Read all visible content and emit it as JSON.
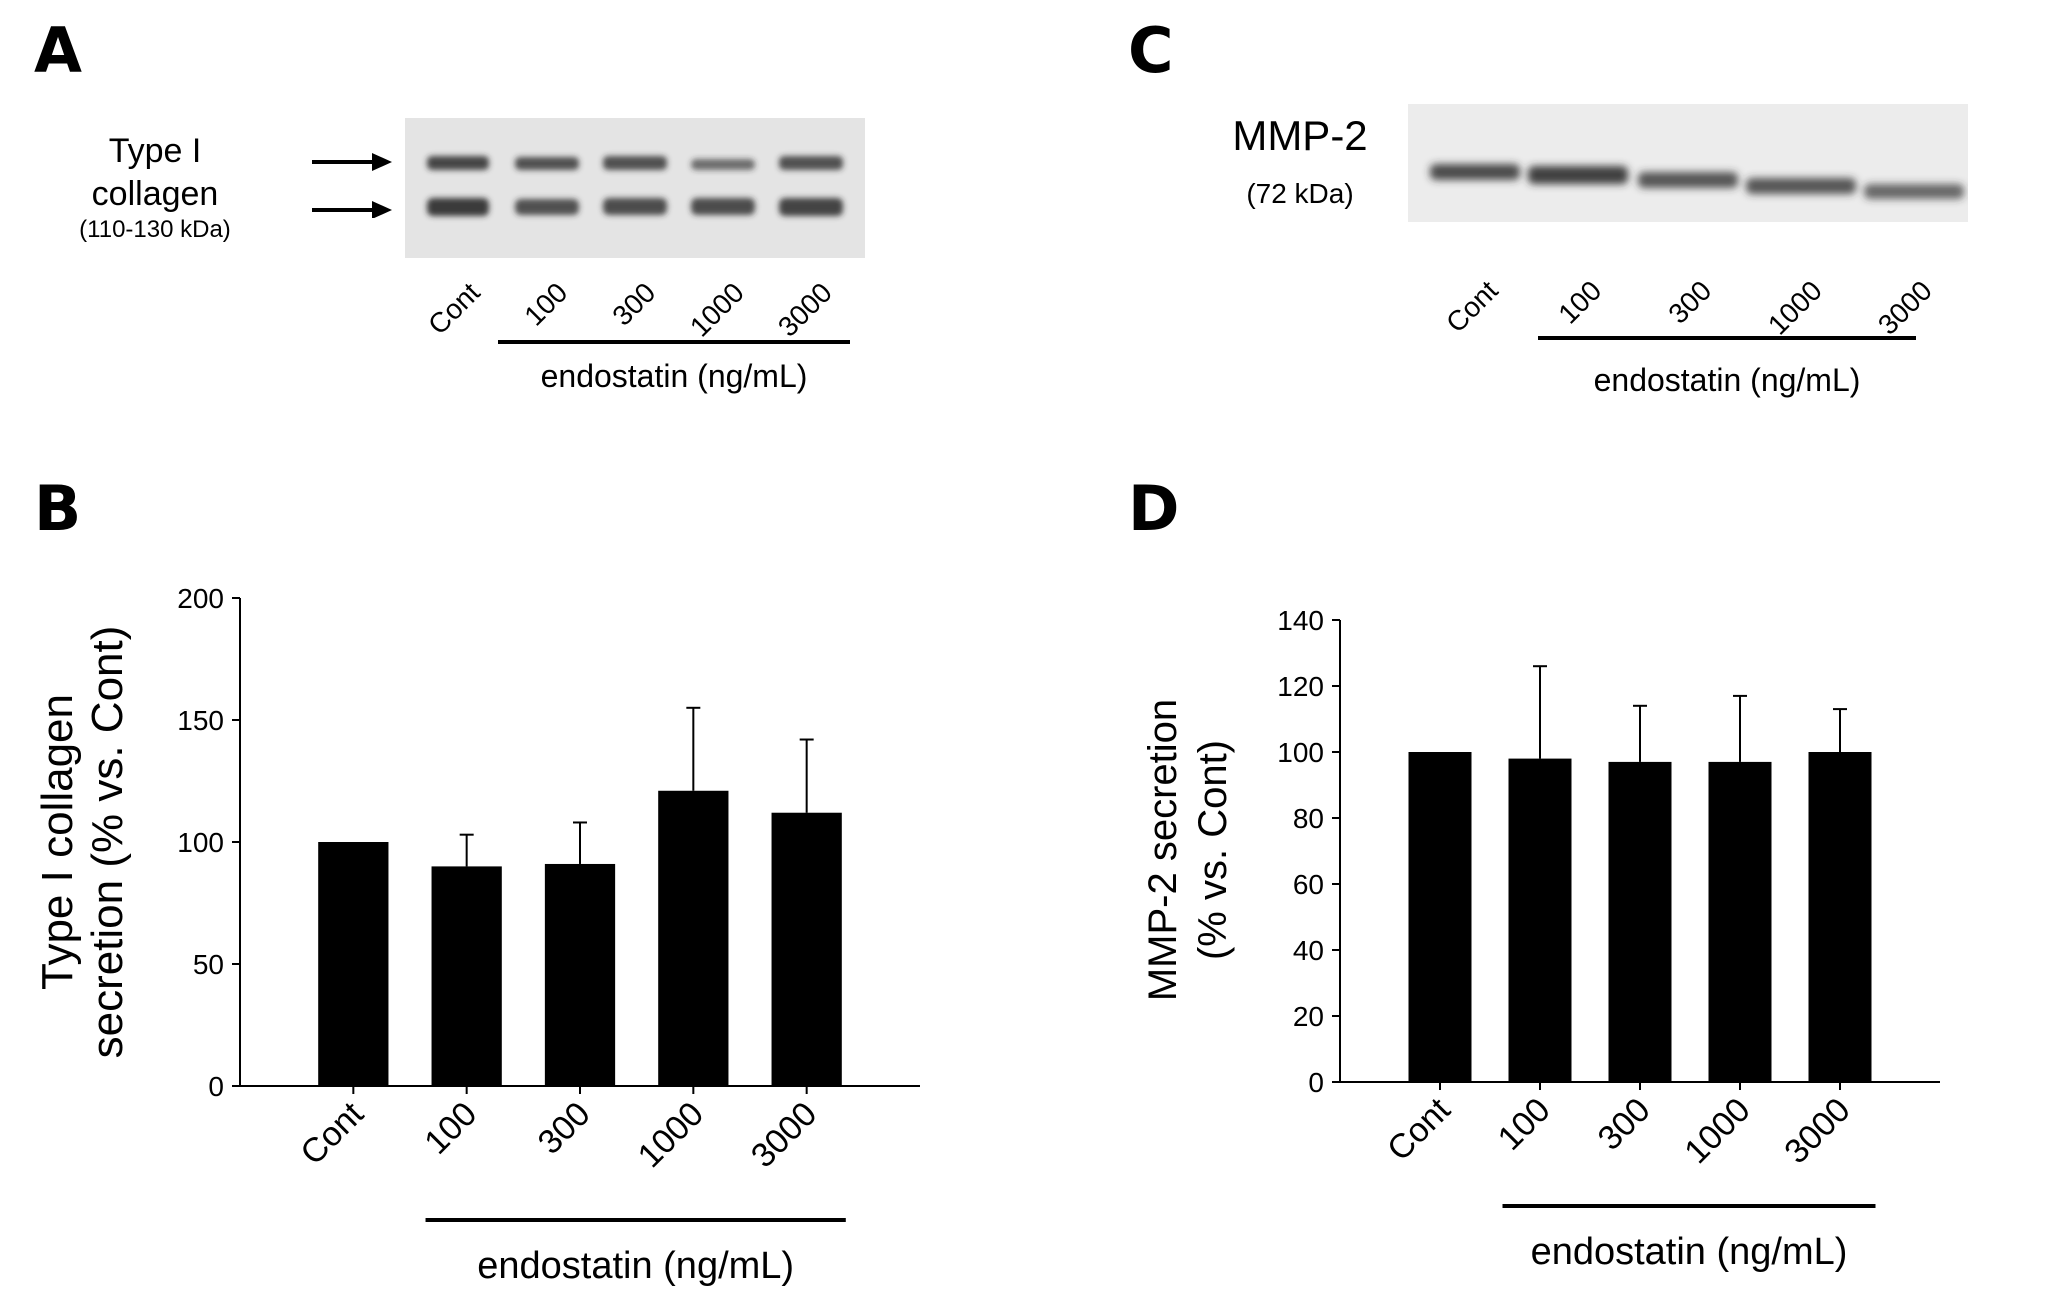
{
  "panels": {
    "a": {
      "letter": "A",
      "protein_name": "Type I collagen",
      "protein_line1": "Type I",
      "protein_line2": "collagen",
      "mw": "(110-130  kDa)",
      "lanes": [
        "Cont",
        "100",
        "300",
        "1000",
        "3000"
      ],
      "treatment_label": "endostatin (ng/mL)"
    },
    "b": {
      "letter": "B"
    },
    "c": {
      "letter": "C",
      "protein_name": "MMP-2",
      "mw": "(72 kDa)",
      "lanes": [
        "Cont",
        "100",
        "300",
        "1000",
        "3000"
      ],
      "treatment_label": "endostatin (ng/mL)"
    },
    "d": {
      "letter": "D"
    }
  },
  "chart_data": [
    {
      "type": "bar",
      "panel": "B",
      "categories": [
        "Cont",
        "100",
        "300",
        "1000",
        "3000"
      ],
      "values": [
        100,
        90,
        91,
        121,
        112
      ],
      "errors": [
        0,
        13,
        17,
        34,
        30
      ],
      "ylabel_line1": "Type I collagen",
      "ylabel_line2": "secretion (% vs. Cont)",
      "ylim": [
        0,
        200
      ],
      "yticks": [
        0,
        50,
        100,
        150,
        200
      ],
      "group_label": "endostatin (ng/mL)",
      "bar_color": "#000000"
    },
    {
      "type": "bar",
      "panel": "D",
      "categories": [
        "Cont",
        "100",
        "300",
        "1000",
        "3000"
      ],
      "values": [
        100,
        98,
        97,
        97,
        100
      ],
      "errors": [
        0,
        28,
        17,
        20,
        13
      ],
      "ylabel_line1": "MMP-2 secretion",
      "ylabel_line2": "(% vs. Cont)",
      "ylim": [
        0,
        140
      ],
      "yticks": [
        0,
        20,
        40,
        60,
        80,
        100,
        120,
        140
      ],
      "group_label": "endostatin (ng/mL)",
      "bar_color": "#000000"
    }
  ]
}
